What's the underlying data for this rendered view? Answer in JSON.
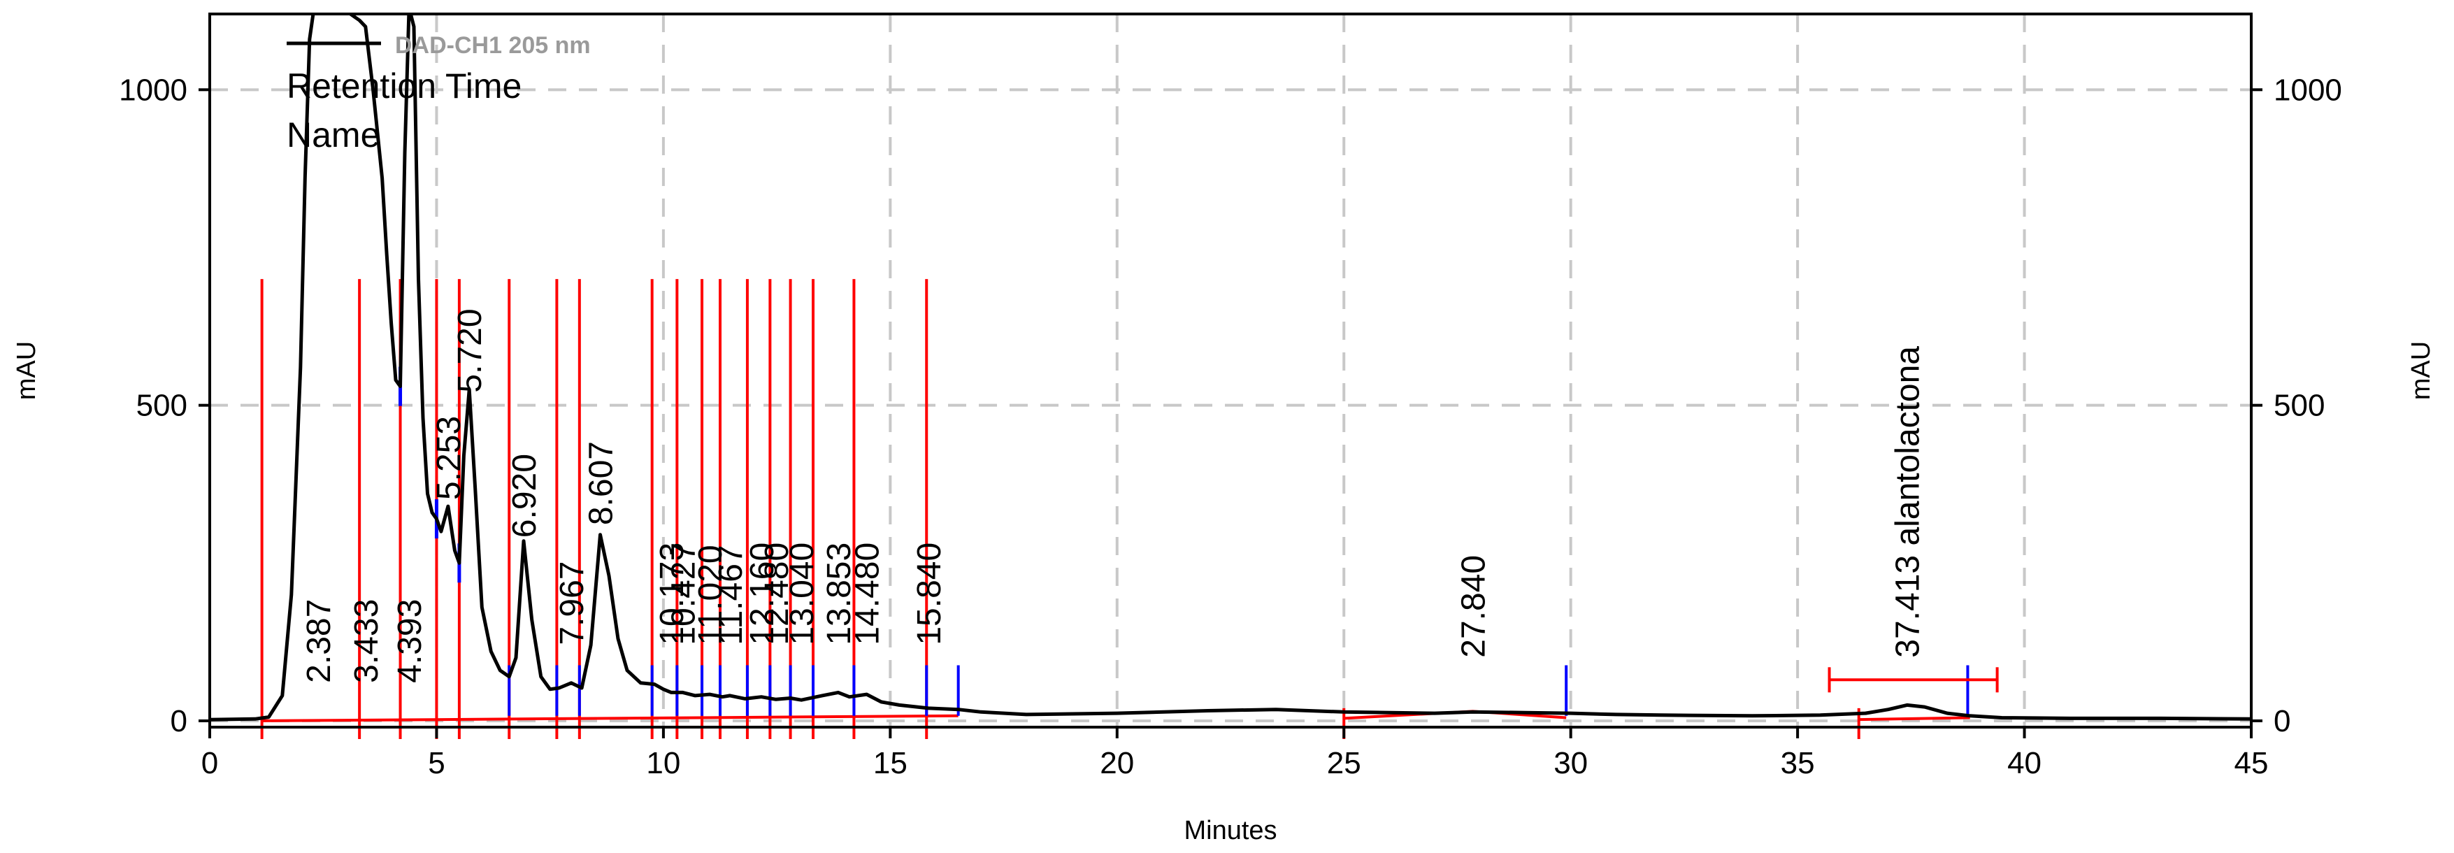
{
  "chart_data": {
    "type": "line",
    "x_label": "Minutes",
    "y_label_left": "mAU",
    "y_label_right": "mAU",
    "xlim": [
      0,
      45
    ],
    "ylim": [
      -10,
      1120
    ],
    "x_ticks": [
      0,
      5,
      10,
      15,
      20,
      25,
      30,
      35,
      40,
      45
    ],
    "y_ticks": [
      0,
      500,
      1000
    ],
    "grid": true,
    "legend": {
      "placement": "top-left",
      "series_name": "DAD-CH1  205 nm",
      "lines": [
        "Retention Time",
        "Name"
      ]
    },
    "colors": {
      "trace": "#000000",
      "baseline": "#ff0000",
      "integration_marks": "#0000ff",
      "grid": "#c8c8c8"
    },
    "peak_labels": [
      {
        "text": "2.387",
        "x": 2.387
      },
      {
        "text": "3.433",
        "x": 3.433
      },
      {
        "text": "4.393",
        "x": 4.393
      },
      {
        "text": "5.253",
        "x": 5.253
      },
      {
        "text": "5.720",
        "x": 5.72
      },
      {
        "text": "6.920",
        "x": 6.92
      },
      {
        "text": "7.967",
        "x": 7.967
      },
      {
        "text": "8.607",
        "x": 8.607
      },
      {
        "text": "10.173",
        "x": 10.173
      },
      {
        "text": "10.427",
        "x": 10.427
      },
      {
        "text": "11.020",
        "x": 11.02
      },
      {
        "text": "11.467",
        "x": 11.467
      },
      {
        "text": "12.160",
        "x": 12.16
      },
      {
        "text": "12.480",
        "x": 12.48
      },
      {
        "text": "13.040",
        "x": 13.04
      },
      {
        "text": "13.853",
        "x": 13.853
      },
      {
        "text": "14.480",
        "x": 14.48
      },
      {
        "text": "15.840",
        "x": 15.84
      },
      {
        "text": "27.840",
        "x": 27.84
      },
      {
        "text": "37.413  alantolactona",
        "x": 37.413
      }
    ],
    "series": [
      {
        "x": [
          0,
          1.0,
          1.3,
          1.6,
          1.8,
          2.0,
          2.1,
          2.2,
          2.3,
          2.387,
          2.5,
          2.7,
          2.9,
          3.1,
          3.3,
          3.433,
          3.6,
          3.8,
          3.9,
          4.0,
          4.1,
          4.2,
          4.3,
          4.393,
          4.5,
          4.6,
          4.7,
          4.8,
          4.9,
          5.0,
          5.1,
          5.253,
          5.4,
          5.5,
          5.6,
          5.72,
          5.85,
          6.0,
          6.2,
          6.4,
          6.6,
          6.75,
          6.92,
          7.1,
          7.3,
          7.5,
          7.7,
          7.967,
          8.2,
          8.4,
          8.607,
          8.8,
          9.0,
          9.2,
          9.5,
          9.8,
          10.0,
          10.173,
          10.427,
          10.7,
          11.02,
          11.3,
          11.467,
          11.8,
          12.16,
          12.48,
          12.8,
          13.04,
          13.5,
          13.853,
          14.1,
          14.48,
          14.8,
          15.2,
          15.84,
          16.5,
          17.0,
          18.0,
          20.0,
          22.0,
          23.5,
          25.0,
          27.0,
          27.84,
          29.0,
          30.0,
          31.0,
          32.0,
          34.0,
          35.5,
          36.5,
          37.0,
          37.413,
          37.8,
          38.3,
          38.8,
          39.5,
          41.0,
          43.0,
          45.0
        ],
        "y": [
          2,
          3,
          6,
          40,
          200,
          560,
          860,
          1080,
          1130,
          1150,
          1150,
          1140,
          1130,
          1120,
          1110,
          1100,
          1000,
          860,
          740,
          630,
          540,
          530,
          900,
          1130,
          1100,
          700,
          480,
          360,
          330,
          320,
          300,
          340,
          270,
          250,
          420,
          525,
          370,
          180,
          110,
          80,
          70,
          100,
          285,
          160,
          70,
          50,
          52,
          60,
          52,
          120,
          295,
          230,
          130,
          80,
          60,
          58,
          50,
          45,
          45,
          40,
          42,
          38,
          40,
          35,
          38,
          34,
          36,
          33,
          40,
          45,
          38,
          42,
          30,
          25,
          20,
          18,
          14,
          10,
          12,
          16,
          18,
          14,
          12,
          14,
          13,
          12,
          10,
          9,
          8,
          9,
          12,
          18,
          25,
          22,
          12,
          8,
          5,
          4,
          4,
          3
        ]
      }
    ],
    "baselines": [
      {
        "x": [
          1.15,
          16.5
        ],
        "y": [
          0,
          8
        ]
      },
      {
        "x": [
          25.0,
          27.84,
          29.9
        ],
        "y": [
          4,
          15,
          5
        ]
      },
      {
        "x": [
          36.35,
          38.8
        ],
        "y": [
          2,
          5
        ]
      }
    ],
    "red_markers": [
      1.15,
      3.3,
      4.2,
      5.0,
      5.5,
      6.6,
      7.65,
      8.15,
      9.75,
      10.3,
      10.85,
      11.25,
      11.85,
      12.35,
      12.8,
      13.3,
      14.2,
      15.8,
      25.0,
      36.35
    ],
    "blue_markers": [
      6.6,
      7.65,
      8.15,
      9.75,
      10.3,
      10.85,
      11.25,
      11.85,
      12.35,
      12.8,
      13.3,
      14.2,
      15.8,
      16.5,
      29.9,
      38.75
    ],
    "blue_short_markers": [
      4.2,
      5.0,
      5.5
    ],
    "window_bar": {
      "x_start": 35.7,
      "x_end": 39.4,
      "y": 65
    }
  }
}
